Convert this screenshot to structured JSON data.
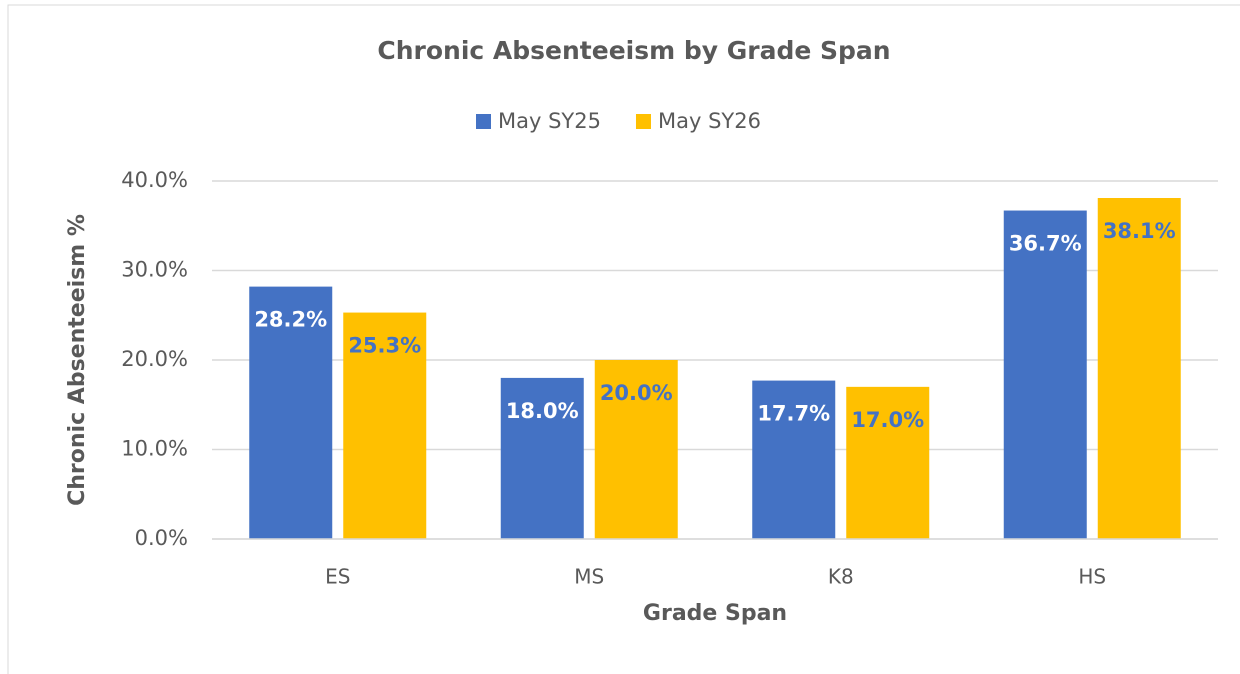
{
  "chart_data": {
    "type": "bar",
    "title": "Chronic Absenteeism by Grade Span",
    "x_label": "Grade Span",
    "y_label": "Chronic Absenteeism %",
    "categories": [
      "ES",
      "MS",
      "K8",
      "HS"
    ],
    "series": [
      {
        "name": "May SY25",
        "color": "#4472c4",
        "values": [
          28.2,
          18.0,
          17.7,
          36.7
        ],
        "value_labels": [
          "28.2%",
          "18.0%",
          "17.7%",
          "36.7%"
        ]
      },
      {
        "name": "May SY26",
        "color": "#ffc000",
        "values": [
          25.3,
          20.0,
          17.0,
          38.1
        ],
        "value_labels": [
          "25.3%",
          "20.0%",
          "17.0%",
          "38.1%"
        ]
      }
    ],
    "ylim": [
      0,
      40
    ],
    "yticks": [
      {
        "value": 0,
        "label": "0.0%"
      },
      {
        "value": 10,
        "label": "10.0%"
      },
      {
        "value": 20,
        "label": "20.0%"
      },
      {
        "value": 30,
        "label": "30.0%"
      },
      {
        "value": 40,
        "label": "40.0%"
      }
    ],
    "grid": true,
    "legend": "top"
  }
}
